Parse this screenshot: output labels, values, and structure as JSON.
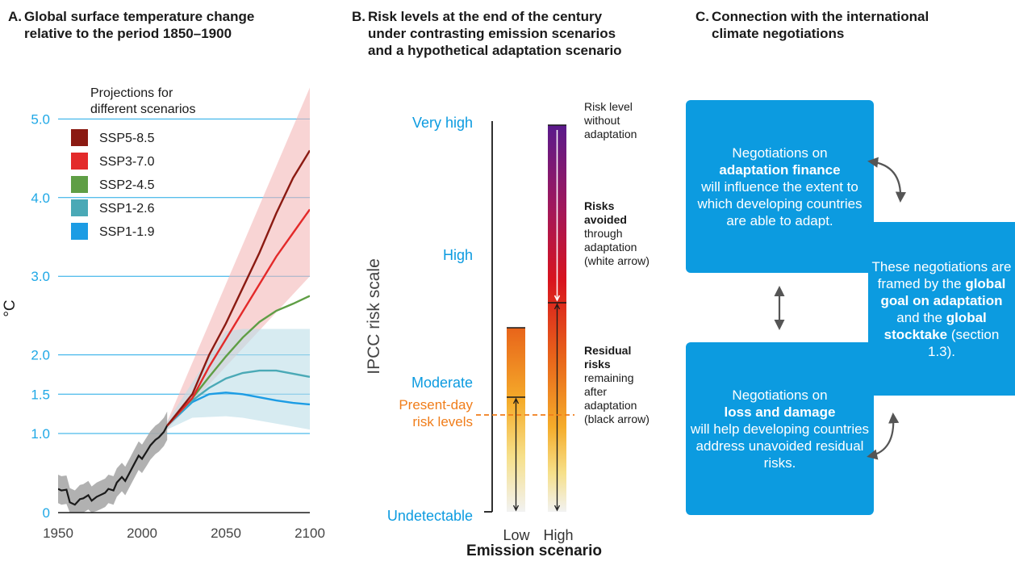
{
  "panel_a": {
    "letter": "A.",
    "title": "Global surface temperature change\nrelative to the period 1850–1900",
    "legend_title": [
      "Projections for",
      "different scenarios"
    ],
    "ylabel": "°C"
  },
  "panel_b": {
    "letter": "B.",
    "title": "Risk levels at the end of the century\nunder contrasting emission scenarios\nand a hypothetical adaptation scenario",
    "ylabel": "IPCC risk scale",
    "xlabel": "Emission scenario",
    "present_day": [
      "Present-day",
      "risk levels"
    ],
    "annot_top": [
      "Risk level",
      "without",
      "adaptation"
    ],
    "annot_mid_bold": [
      "Risks",
      "avoided"
    ],
    "annot_mid": [
      "through",
      "adaptation",
      "(white arrow)"
    ],
    "annot_bot_bold": [
      "Residual",
      "risks"
    ],
    "annot_bot": [
      "remaining",
      "after",
      "adaptation",
      "(black arrow)"
    ]
  },
  "panel_c": {
    "letter": "C.",
    "title": "Connection with the international\nclimate negotiations",
    "box1": {
      "pre": "Negotiations on",
      "bold": "adaptation finance",
      "post": "will influence the extent to which developing countries are able to adapt."
    },
    "box2": {
      "pre": "Negotiations on",
      "bold": "loss and damage",
      "post": "will help developing countries address unavoided residual risks."
    },
    "box3": {
      "t1": "These negotiations are framed by the",
      "b1": "global goal on adaptation",
      "t2": "and the",
      "b2": "global stocktake",
      "t3": "(section 1.3)."
    }
  },
  "colors": {
    "accent": "#0c9be0",
    "grid": "#1fa8e6",
    "present_day": "#f07d1a"
  },
  "chart_data": [
    {
      "type": "line",
      "title": "Global surface temperature change relative to the period 1850–1900",
      "ylabel": "°C",
      "xlim": [
        1950,
        2100
      ],
      "x_ticks": [
        "1950",
        "2000",
        "2050",
        "2100"
      ],
      "y_ticks": [
        {
          "label": "0",
          "value": 0
        },
        {
          "label": "1.0",
          "value": 1.0
        },
        {
          "label": "1.5",
          "value": 1.5
        },
        {
          "label": "2.0",
          "value": 2.0
        },
        {
          "label": "3.0",
          "value": 3.0
        },
        {
          "label": "4.0",
          "value": 4.0
        },
        {
          "label": "5.0",
          "value": 5.0
        }
      ],
      "y_scale": "nonlinear (0 to 1.0 compressed)",
      "grid": true,
      "legend_position": "top-left",
      "observed": {
        "x": [
          1950,
          1952,
          1955,
          1957,
          1960,
          1963,
          1965,
          1968,
          1970,
          1973,
          1975,
          1978,
          1980,
          1983,
          1985,
          1988,
          1990,
          1992,
          1995,
          1998,
          2000,
          2003,
          2005,
          2008,
          2010,
          2013,
          2015
        ],
        "y": [
          0.3,
          0.28,
          0.29,
          0.13,
          0.1,
          0.17,
          0.18,
          0.22,
          0.15,
          0.2,
          0.22,
          0.25,
          0.3,
          0.28,
          0.38,
          0.45,
          0.4,
          0.48,
          0.6,
          0.72,
          0.68,
          0.78,
          0.85,
          0.92,
          0.95,
          1.02,
          1.1
        ],
        "band_halfwidth": 0.18
      },
      "series": [
        {
          "name": "SSP5-8.5",
          "color": "#8b1a12",
          "x": [
            2015,
            2030,
            2040,
            2050,
            2060,
            2070,
            2080,
            2090,
            2100
          ],
          "y": [
            1.1,
            1.5,
            2.0,
            2.4,
            2.85,
            3.3,
            3.8,
            4.25,
            4.6
          ]
        },
        {
          "name": "SSP3-7.0",
          "color": "#e32a2a",
          "x": [
            2015,
            2030,
            2040,
            2050,
            2060,
            2070,
            2080,
            2090,
            2100
          ],
          "y": [
            1.1,
            1.45,
            1.85,
            2.2,
            2.55,
            2.9,
            3.25,
            3.55,
            3.85
          ]
        },
        {
          "name": "SSP2-4.5",
          "color": "#5f9e45",
          "x": [
            2015,
            2030,
            2040,
            2050,
            2060,
            2070,
            2080,
            2090,
            2100
          ],
          "y": [
            1.1,
            1.45,
            1.72,
            1.98,
            2.22,
            2.42,
            2.56,
            2.65,
            2.75
          ]
        },
        {
          "name": "SSP1-2.6",
          "color": "#4aa9b6",
          "x": [
            2015,
            2030,
            2040,
            2050,
            2060,
            2070,
            2080,
            2090,
            2100
          ],
          "y": [
            1.1,
            1.42,
            1.58,
            1.7,
            1.77,
            1.8,
            1.8,
            1.76,
            1.72
          ]
        },
        {
          "name": "SSP1-1.9",
          "color": "#1c9ce4",
          "x": [
            2015,
            2030,
            2040,
            2050,
            2060,
            2070,
            2080,
            2090,
            2100
          ],
          "y": [
            1.1,
            1.4,
            1.5,
            1.52,
            1.5,
            1.46,
            1.42,
            1.39,
            1.37
          ]
        }
      ],
      "bands": [
        {
          "name": "very-likely-range-high",
          "color": "#f4b7b7",
          "x": [
            2015,
            2100
          ],
          "lower": [
            1.05,
            3.0
          ],
          "upper": [
            1.15,
            5.4
          ]
        },
        {
          "name": "very-likely-range-low",
          "color": "#bcdde8",
          "x": [
            2015,
            2030,
            2050,
            2060,
            2100
          ],
          "lower": [
            1.05,
            1.2,
            1.22,
            1.2,
            1.05
          ],
          "upper": [
            1.15,
            1.65,
            2.3,
            2.33,
            2.33
          ]
        }
      ]
    },
    {
      "type": "bar",
      "title": "Risk levels at the end of the century under contrasting emission scenarios and a hypothetical adaptation scenario",
      "xlabel": "Emission scenario",
      "ylabel": "IPCC risk scale",
      "categories": [
        "Low",
        "High"
      ],
      "y_ticks": [
        {
          "label": "Undetectable",
          "value": 0
        },
        {
          "label": "Moderate",
          "value": 1
        },
        {
          "label": "High",
          "value": 2
        },
        {
          "label": "Very high",
          "value": 3
        }
      ],
      "present_day_level": 0.75,
      "series": [
        {
          "name": "Risk level without adaptation",
          "values": [
            1.45,
            3.0
          ]
        },
        {
          "name": "Residual risks remaining after adaptation",
          "values": [
            0.92,
            1.6
          ]
        }
      ]
    }
  ]
}
